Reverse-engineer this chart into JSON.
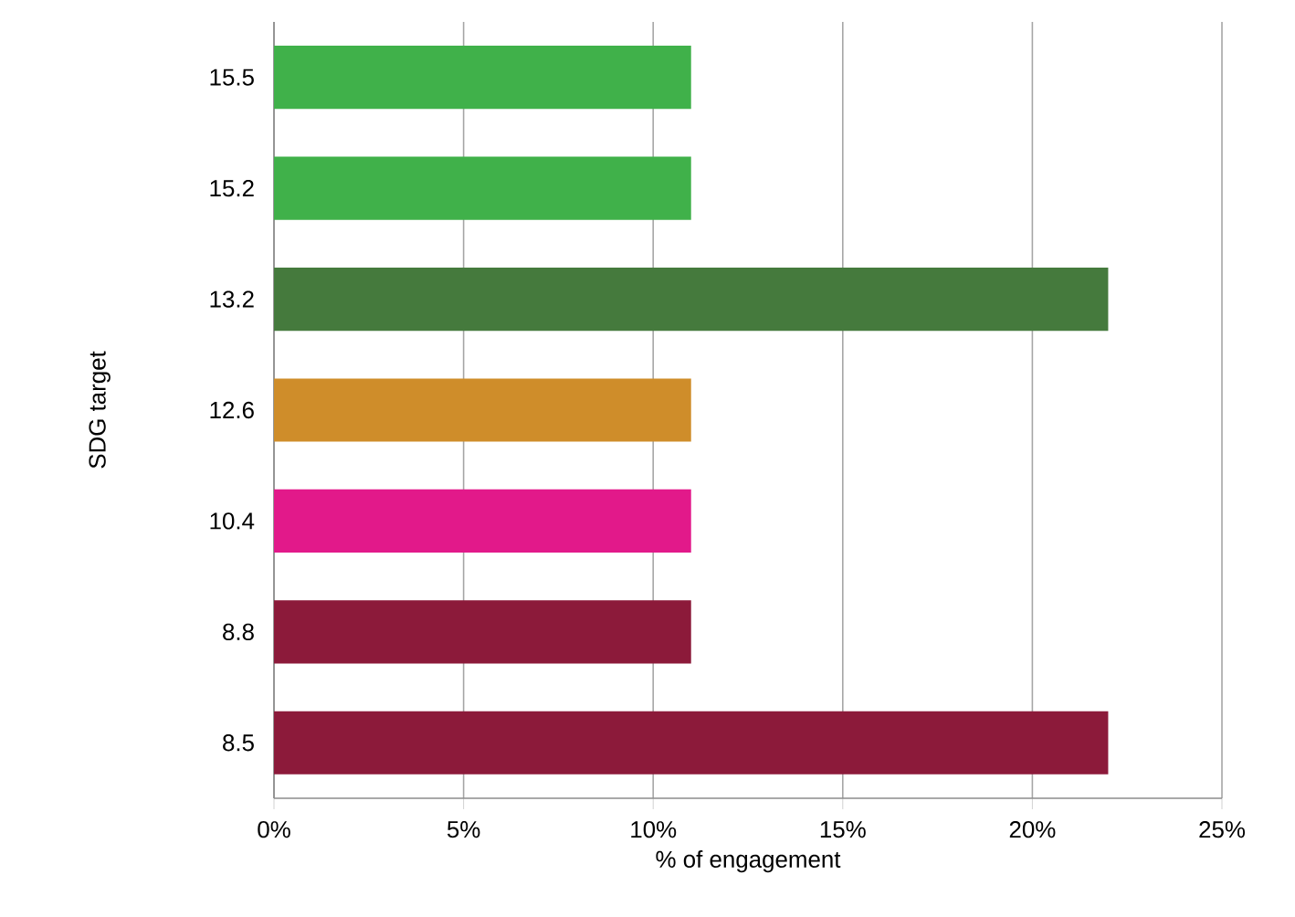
{
  "chart_data": {
    "type": "bar",
    "orientation": "horizontal",
    "xlabel": "% of engagement",
    "ylabel": "SDG target",
    "categories": [
      "15.5",
      "15.2",
      "13.2",
      "12.6",
      "10.4",
      "8.8",
      "8.5"
    ],
    "values": [
      11,
      11,
      22,
      11,
      11,
      11,
      22
    ],
    "colors": [
      "#40b14a",
      "#40b14a",
      "#457a3d",
      "#cf8d2a",
      "#e2198a",
      "#8c1a3a",
      "#8c1a3a"
    ],
    "xlim": [
      0,
      25
    ],
    "xticks": [
      {
        "value": 0,
        "label": "0%"
      },
      {
        "value": 5,
        "label": "5%"
      },
      {
        "value": 10,
        "label": "10%"
      },
      {
        "value": 15,
        "label": "15%"
      },
      {
        "value": 20,
        "label": "20%"
      },
      {
        "value": 25,
        "label": "25%"
      }
    ],
    "grid": "x"
  }
}
